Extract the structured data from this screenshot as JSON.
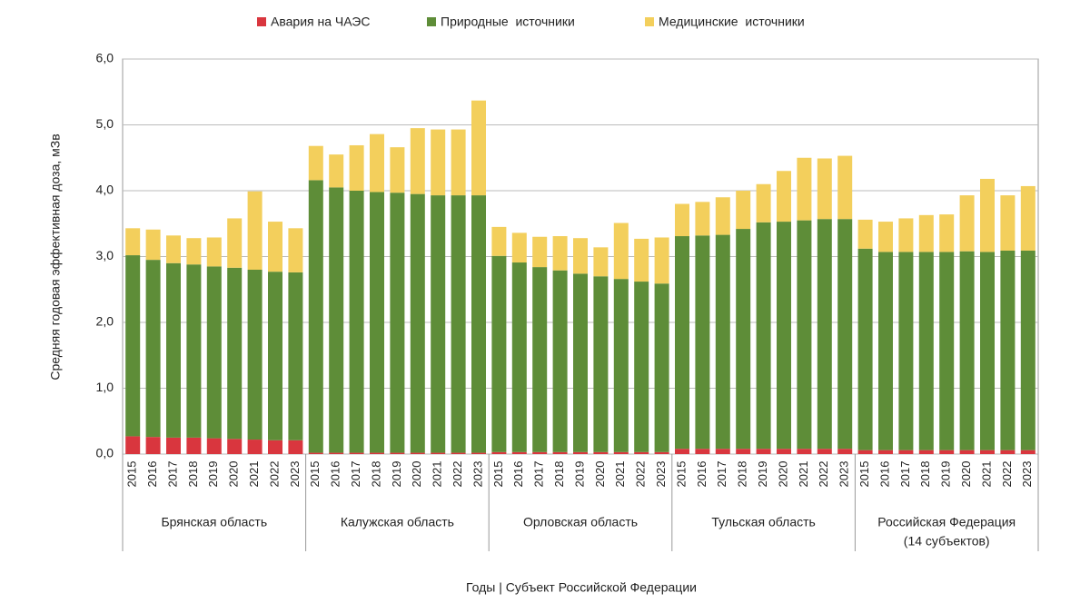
{
  "chart_data": {
    "type": "stacked_bar",
    "y_label": "Средняя годовая эффективная доза, мЗв",
    "x_label": "Годы | Субъект Российской Федерации",
    "groups": [
      {
        "name": [
          "Брянская область"
        ],
        "categories": [
          "2015",
          "2016",
          "2017",
          "2018",
          "2019",
          "2020",
          "2021",
          "2022",
          "2023"
        ]
      },
      {
        "name": [
          "Калужская область"
        ],
        "categories": [
          "2015",
          "2016",
          "2017",
          "2018",
          "2019",
          "2020",
          "2021",
          "2022",
          "2023"
        ]
      },
      {
        "name": [
          "Орловская область"
        ],
        "categories": [
          "2015",
          "2016",
          "2017",
          "2018",
          "2019",
          "2020",
          "2021",
          "2022",
          "2023"
        ]
      },
      {
        "name": [
          "Тульская область"
        ],
        "categories": [
          "2015",
          "2016",
          "2017",
          "2018",
          "2019",
          "2020",
          "2021",
          "2022",
          "2023"
        ]
      },
      {
        "name": [
          "Российская Федерация",
          "(14 субъектов)"
        ],
        "categories": [
          "2015",
          "2016",
          "2017",
          "2018",
          "2019",
          "2020",
          "2021",
          "2022",
          "2023"
        ]
      }
    ],
    "series": [
      {
        "name": "Авария на ЧАЭС",
        "color": "#d9363e",
        "values": [
          0.27,
          0.26,
          0.25,
          0.25,
          0.24,
          0.23,
          0.22,
          0.21,
          0.21,
          0.02,
          0.02,
          0.02,
          0.02,
          0.02,
          0.02,
          0.02,
          0.02,
          0.02,
          0.03,
          0.03,
          0.03,
          0.03,
          0.03,
          0.03,
          0.03,
          0.03,
          0.03,
          0.08,
          0.08,
          0.08,
          0.08,
          0.08,
          0.08,
          0.08,
          0.08,
          0.08,
          0.06,
          0.06,
          0.06,
          0.06,
          0.06,
          0.06,
          0.06,
          0.06,
          0.06
        ]
      },
      {
        "name": "Природные  источники",
        "color": "#5e8d38",
        "values": [
          2.75,
          2.69,
          2.65,
          2.63,
          2.61,
          2.6,
          2.58,
          2.56,
          2.55,
          4.14,
          4.03,
          3.98,
          3.96,
          3.95,
          3.93,
          3.91,
          3.91,
          3.91,
          2.98,
          2.88,
          2.81,
          2.76,
          2.71,
          2.67,
          2.63,
          2.59,
          2.56,
          3.23,
          3.24,
          3.25,
          3.34,
          3.44,
          3.45,
          3.47,
          3.49,
          3.49,
          3.06,
          3.01,
          3.01,
          3.01,
          3.01,
          3.02,
          3.01,
          3.03,
          3.03
        ]
      },
      {
        "name": "Медицинские  источники",
        "color": "#f3cf5c",
        "values": [
          0.41,
          0.46,
          0.42,
          0.4,
          0.44,
          0.75,
          1.19,
          0.76,
          0.67,
          0.52,
          0.5,
          0.69,
          0.88,
          0.69,
          1.0,
          1.0,
          1.0,
          1.44,
          0.44,
          0.45,
          0.46,
          0.52,
          0.54,
          0.44,
          0.85,
          0.65,
          0.7,
          0.49,
          0.51,
          0.57,
          0.58,
          0.58,
          0.77,
          0.95,
          0.92,
          0.96,
          0.44,
          0.46,
          0.51,
          0.56,
          0.57,
          0.85,
          1.11,
          0.84,
          0.98
        ]
      }
    ],
    "ylim": [
      0,
      6
    ],
    "yticks": [
      {
        "value": 0,
        "label": "0,0"
      },
      {
        "value": 1,
        "label": "1,0"
      },
      {
        "value": 2,
        "label": "2,0"
      },
      {
        "value": 3,
        "label": "3,0"
      },
      {
        "value": 4,
        "label": "4,0"
      },
      {
        "value": 5,
        "label": "5,0"
      },
      {
        "value": 6,
        "label": "6,0"
      }
    ],
    "grid": true,
    "legend": "top"
  }
}
